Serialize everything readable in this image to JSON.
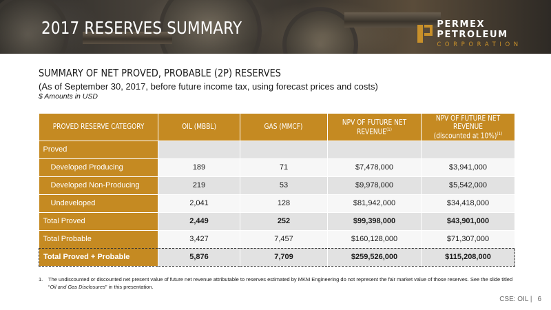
{
  "header": {
    "title": "2017 RESERVES SUMMARY",
    "logo_line1": "PERMEX PETROLEUM",
    "logo_line2": "CORPORATION"
  },
  "heading": {
    "title": "SUMMARY OF NET PROVED, PROBABLE (2P) RESERVES",
    "subtitle": "(As of September 30, 2017, before future income tax, using forecast prices and costs)",
    "note": "$ Amounts in USD"
  },
  "table": {
    "columns": [
      "PROVED RESERVE CATEGORY",
      "OIL (MBBL)",
      "GAS (MMCF)",
      "NPV OF FUTURE NET REVENUE",
      "NPV OF FUTURE NET REVENUE",
      "(discounted at 10%)"
    ],
    "footnote_ref": "(1)",
    "rows": [
      {
        "category": "Proved",
        "oil": "",
        "gas": "",
        "npv": "",
        "npv10": ""
      },
      {
        "category": "Developed Producing",
        "oil": "189",
        "gas": "71",
        "npv": "$7,478,000",
        "npv10": "$3,941,000"
      },
      {
        "category": "Developed Non-Producing",
        "oil": "219",
        "gas": "53",
        "npv": "$9,978,000",
        "npv10": "$5,542,000"
      },
      {
        "category": "Undeveloped",
        "oil": "2,041",
        "gas": "128",
        "npv": "$81,942,000",
        "npv10": "$34,418,000"
      },
      {
        "category": "Total Proved",
        "oil": "2,449",
        "gas": "252",
        "npv": "$99,398,000",
        "npv10": "$43,901,000"
      },
      {
        "category": "Total Probable",
        "oil": "3,427",
        "gas": "7,457",
        "npv": "$160,128,000",
        "npv10": "$71,307,000"
      },
      {
        "category": "Total Proved + Probable",
        "oil": "5,876",
        "gas": "7,709",
        "npv": "$259,526,000",
        "npv10": "$115,208,000"
      }
    ]
  },
  "footnote": {
    "number": "1.",
    "text_before": "The undiscounted or discounted net present value of future net revenue attributable to reserves estimated by MKM Engineering do not represent the fair market value of those reserves. See the slide titled “",
    "text_italic": "Oil and Gas Disclosures",
    "text_after": "” in this presentation."
  },
  "pager": {
    "ticker": "CSE: OIL |",
    "page": "6"
  },
  "colors": {
    "accent": "#c58a22",
    "shade": "#e2e2e2",
    "light": "#f7f7f7"
  }
}
